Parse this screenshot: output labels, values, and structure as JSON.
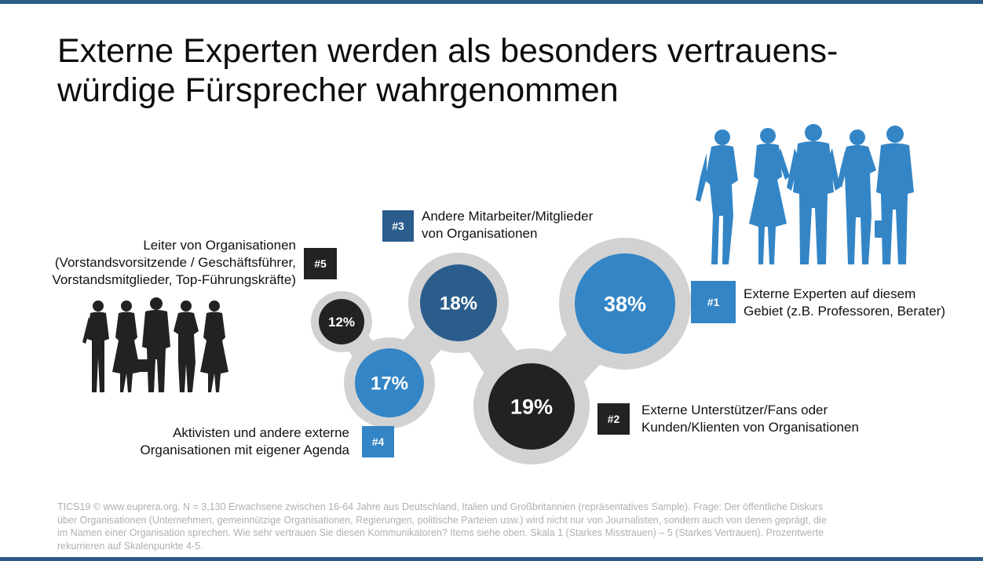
{
  "title_lines": [
    "Externe Experten werden als besonders vertrauens-",
    "würdige Fürsprecher wahrgenommen"
  ],
  "colors": {
    "bar": "#2d5b88",
    "blue": "#3385c6",
    "navy": "#2b5d8c",
    "dark": "#222222",
    "connector": "#d2d2d2",
    "footer": "#b0b0b0"
  },
  "icons": {
    "people_right": "business-people-icon",
    "people_left": "business-people-icon"
  },
  "chart_data": {
    "type": "bubble-ranking",
    "unit": "%",
    "items": [
      {
        "rank": "#1",
        "value": 38,
        "display": "38%",
        "label_lines": [
          "Externe Experten auf diesem",
          "Gebiet (z.B. Professoren, Berater)"
        ],
        "color": "#3385c6"
      },
      {
        "rank": "#2",
        "value": 19,
        "display": "19%",
        "label_lines": [
          "Externe Unterstützer/Fans oder",
          "Kunden/Klienten von Organisationen"
        ],
        "color": "#222222"
      },
      {
        "rank": "#3",
        "value": 18,
        "display": "18%",
        "label_lines": [
          "Andere Mitarbeiter/Mitglieder",
          "von Organisationen"
        ],
        "color": "#2b5d8c"
      },
      {
        "rank": "#4",
        "value": 17,
        "display": "17%",
        "label_lines": [
          "Aktivisten und andere externe",
          "Organisationen mit eigener Agenda"
        ],
        "color": "#3385c6"
      },
      {
        "rank": "#5",
        "value": 12,
        "display": "12%",
        "label_lines": [
          "Leiter von Organisationen",
          "(Vorstandsvorsitzende / Geschäftsführer,",
          "Vorstandsmitglieder, Top-Führungskräfte)"
        ],
        "color": "#222222"
      }
    ]
  },
  "footer_lines": [
    "TICS19 © www.euprera.org. N = 3,130 Erwachsene zwischen 16-64 Jahre aus Deutschland, Italien und Großbritannien (repräsentatives Sample). Frage: Der öffentliche Diskurs",
    "über Organisationen (Unternehmen, gemeinnützige Organisationen, Regierungen, politische Parteien usw.) wird nicht nur von Journalisten, sondern auch von denen geprägt, die",
    "im Namen einer Organisation sprechen. Wie sehr vertrauen Sie diesen Kommunikatoren? Items siehe oben. Skala 1 (Starkes Misstrauen) – 5 (Starkes Vertrauen). Prozentwerte",
    "rekurrieren auf Skalenpunkte 4-5."
  ]
}
